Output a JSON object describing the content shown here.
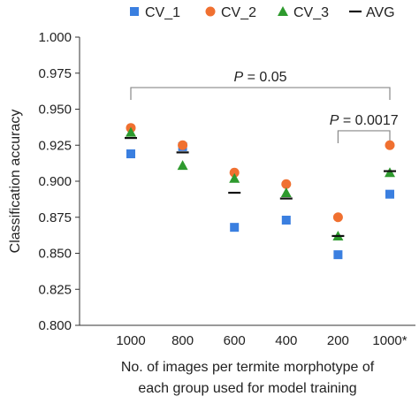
{
  "chart_data": {
    "type": "scatter",
    "categories": [
      "1000",
      "800",
      "600",
      "400",
      "200",
      "1000*"
    ],
    "series": [
      {
        "name": "CV_1",
        "marker": "square",
        "color": "#3a7fe0",
        "values": [
          0.919,
          0.924,
          0.868,
          0.873,
          0.849,
          0.891
        ]
      },
      {
        "name": "CV_2",
        "marker": "circle",
        "color": "#f07030",
        "values": [
          0.937,
          0.925,
          0.906,
          0.898,
          0.875,
          0.925
        ]
      },
      {
        "name": "CV_3",
        "marker": "triangle",
        "color": "#2e9a2e",
        "values": [
          0.934,
          0.911,
          0.902,
          0.892,
          0.862,
          0.906
        ]
      },
      {
        "name": "AVG",
        "marker": "dash",
        "color": "#111111",
        "values": [
          0.93,
          0.92,
          0.892,
          0.888,
          0.862,
          0.907
        ]
      }
    ],
    "yticks": [
      "0.800",
      "0.825",
      "0.850",
      "0.875",
      "0.900",
      "0.925",
      "0.950",
      "0.975",
      "1.000"
    ],
    "ylim": [
      0.8,
      1.0
    ],
    "ylabel": "Classification accuracy",
    "xlabel_line1": "No. of images per termite morphotype of",
    "xlabel_line2": "each group used for model training",
    "legend_position": "top",
    "annotations": [
      {
        "label": "P = 0.05",
        "from": "1000",
        "to": "1000*",
        "y": 0.965
      },
      {
        "label": "P = 0.0017",
        "from": "200",
        "to": "1000*",
        "y": 0.935
      }
    ]
  }
}
